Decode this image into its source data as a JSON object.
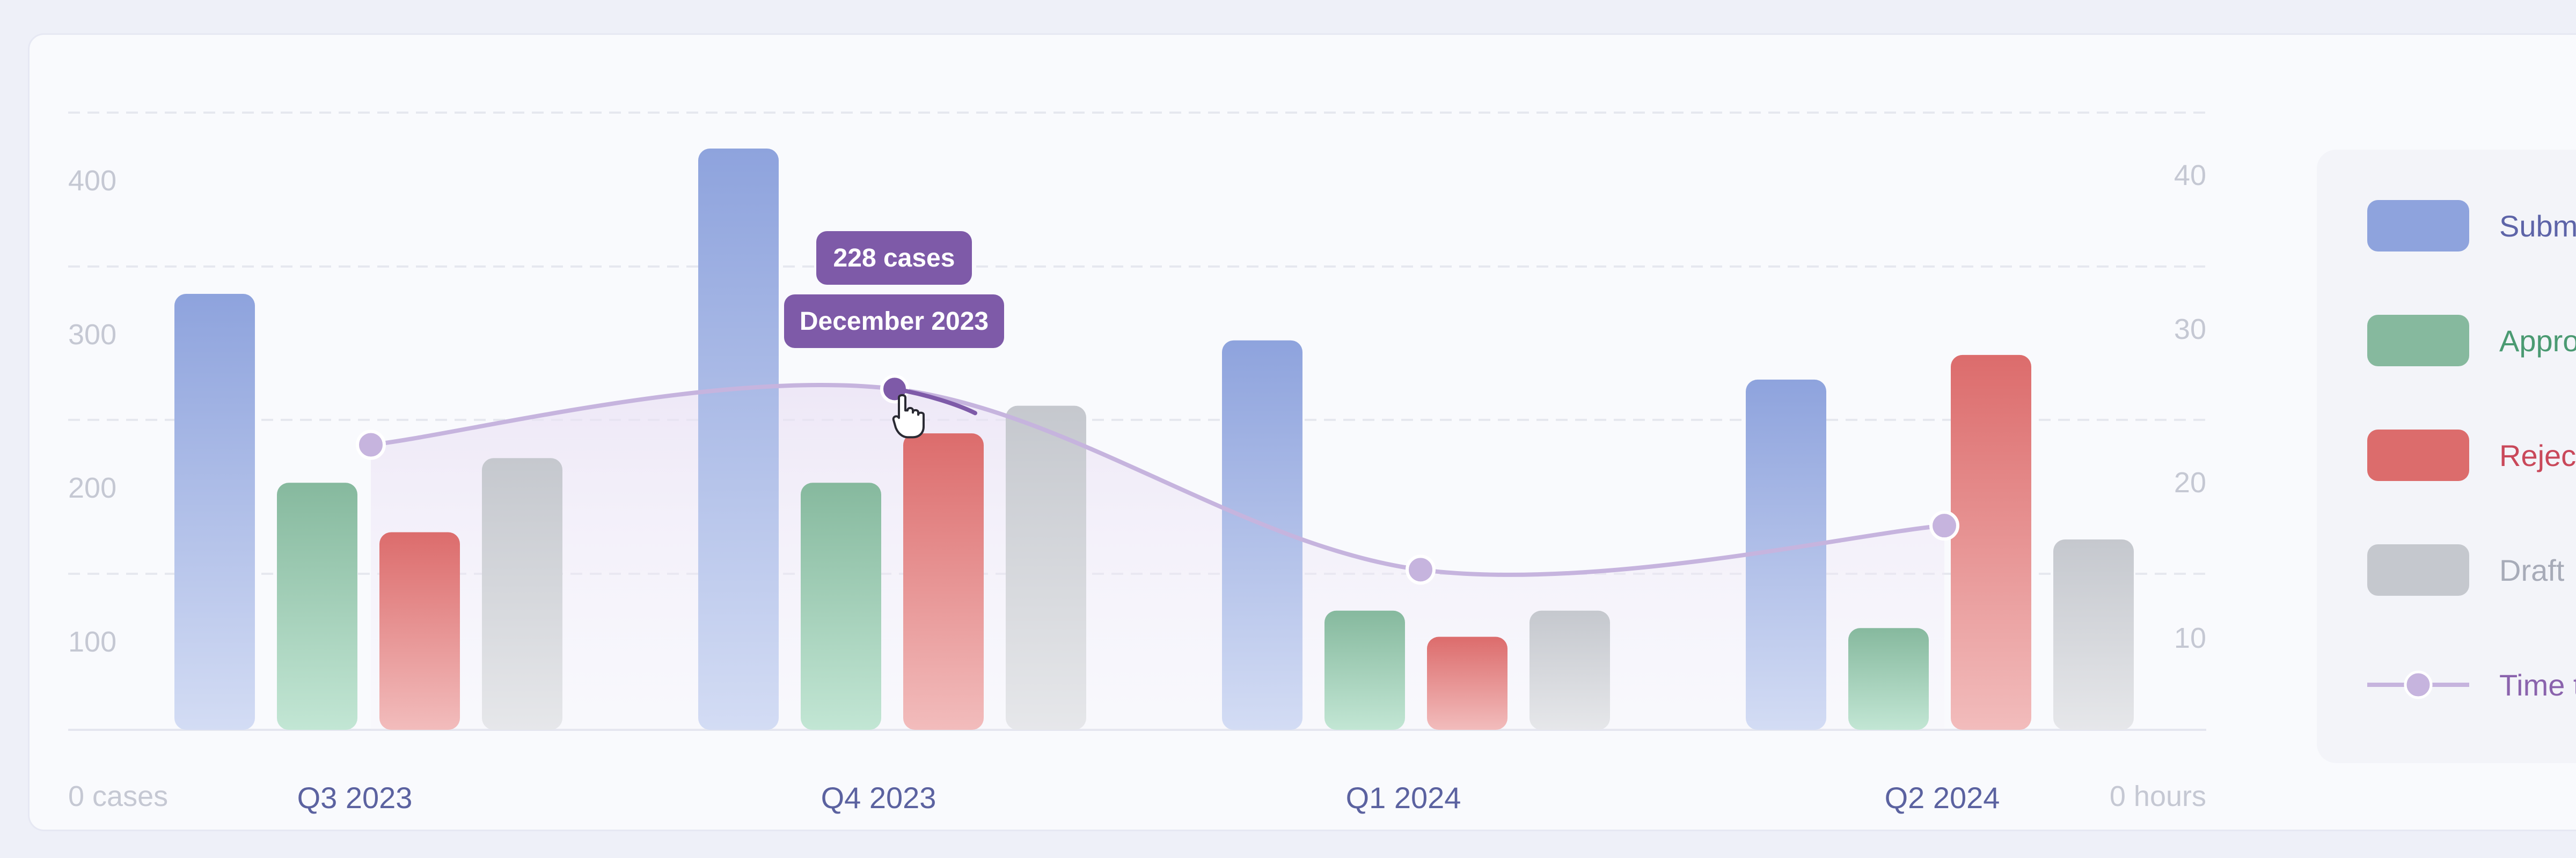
{
  "chart_data": {
    "type": "bar",
    "categories": [
      "Q3 2023",
      "Q4 2023",
      "Q1 2024",
      "Q2 2024"
    ],
    "series": [
      {
        "name": "Submitted",
        "kind": "bar",
        "axis": "left",
        "color": "#8ea3dd",
        "color_light": "#d3dcf4",
        "values": [
          300,
          400,
          268,
          241
        ]
      },
      {
        "name": "Approved",
        "kind": "bar",
        "axis": "left",
        "color": "#86b99e",
        "color_light": "#c2e6d4",
        "values": [
          170,
          170,
          82,
          70
        ]
      },
      {
        "name": "Rejected",
        "kind": "bar",
        "axis": "left",
        "color": "#dc6c6c",
        "color_light": "#f2bcbc",
        "values": [
          136,
          204,
          64,
          258
        ]
      },
      {
        "name": "Draft",
        "kind": "bar",
        "axis": "left",
        "color": "#c5c8ce",
        "color_light": "#e6e7ea",
        "values": [
          187,
          223,
          82,
          131
        ]
      },
      {
        "name": "Time to",
        "kind": "line",
        "axis": "right",
        "color": "#c6b4de",
        "values": [
          19.4,
          23.2,
          10.9,
          13.9
        ]
      }
    ],
    "y_left": {
      "ticks": [
        400,
        300,
        200,
        100
      ],
      "zero_label": "0 cases",
      "ylim": [
        0,
        400
      ]
    },
    "y_right": {
      "ticks": [
        40,
        30,
        20,
        10
      ],
      "zero_label": "0 hours",
      "ylim": [
        0,
        40
      ]
    },
    "grid": true,
    "legend_position": "right",
    "tooltip": {
      "category": "Q4 2023",
      "value_label": "228 cases",
      "period_label": "December 2023",
      "color": "#7e5aa8"
    }
  }
}
